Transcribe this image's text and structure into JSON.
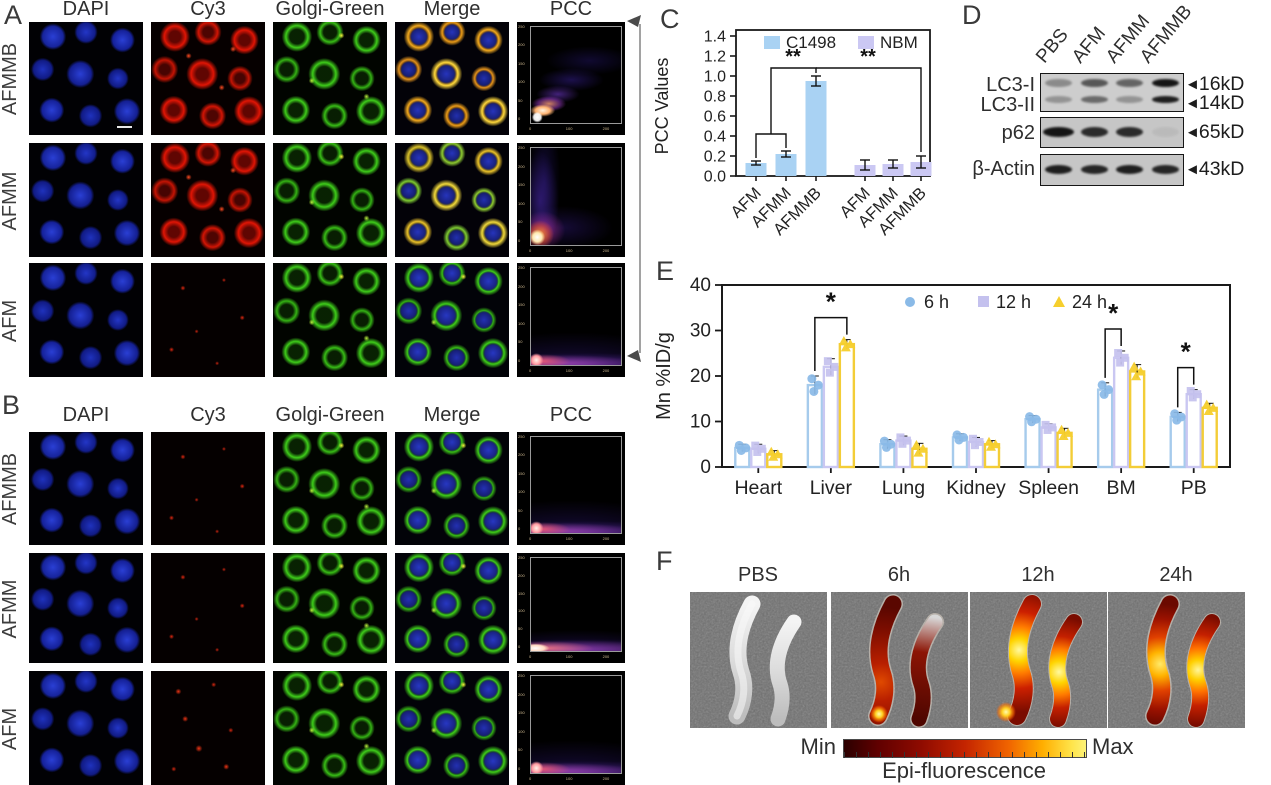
{
  "panels": {
    "A": {
      "label": "A",
      "columns": [
        "DAPI",
        "Cy3",
        "Golgi-Green",
        "Merge",
        "PCC"
      ],
      "rows": [
        "AFMMB",
        "AFMM",
        "AFM"
      ]
    },
    "B": {
      "label": "B",
      "columns": [
        "DAPI",
        "Cy3",
        "Golgi-Green",
        "Merge",
        "PCC"
      ],
      "rows": [
        "AFMMB",
        "AFMM",
        "AFM"
      ]
    },
    "C": {
      "label": "C"
    },
    "D": {
      "label": "D",
      "lanes": [
        "PBS",
        "AFM",
        "AFMM",
        "AFMMB"
      ],
      "marker_arrow": "◄",
      "bands": [
        {
          "label": "LC3-I",
          "marker": "16kD",
          "intensities": [
            0.35,
            0.62,
            0.55,
            0.97
          ]
        },
        {
          "label": "LC3-II",
          "marker": "14kD",
          "intensities": [
            0.3,
            0.52,
            0.3,
            0.92
          ]
        },
        {
          "label": "p62",
          "marker": "65kD",
          "intensities": [
            0.97,
            0.85,
            0.85,
            0.06
          ]
        },
        {
          "label": "β-Actin",
          "marker": "43kD",
          "intensities": [
            0.92,
            0.88,
            0.92,
            0.88
          ]
        }
      ]
    },
    "E": {
      "label": "E"
    },
    "F": {
      "label": "F",
      "conditions": [
        "PBS",
        "6h",
        "12h",
        "24h"
      ],
      "colorbar": {
        "min_label": "Min",
        "max_label": "Max",
        "caption": "Epi-fluorescence"
      }
    }
  },
  "pcc_axis": {
    "y_ticks": [
      "250",
      "200",
      "150",
      "100",
      "50",
      "0"
    ],
    "x_ticks": [
      "0",
      "100",
      "200"
    ]
  },
  "chart_data": [
    {
      "panel": "C",
      "type": "bar",
      "ylabel": "PCC Values",
      "ylim": [
        0,
        1.4
      ],
      "yticks": [
        "0.0",
        "0.2",
        "0.4",
        "0.6",
        "0.8",
        "1.0",
        "1.2",
        "1.4"
      ],
      "categories": [
        "AFM",
        "AFMM",
        "AFMMB"
      ],
      "series": [
        {
          "name": "C1498",
          "color": "#a9d2f3",
          "values": [
            0.13,
            0.22,
            0.95
          ],
          "errors": [
            0.02,
            0.03,
            0.05
          ]
        },
        {
          "name": "NBM",
          "color": "#cbc8f3",
          "values": [
            0.11,
            0.12,
            0.14
          ],
          "errors": [
            0.05,
            0.04,
            0.06
          ]
        }
      ],
      "legend": [
        "C1498",
        "NBM"
      ],
      "legend_position": "top",
      "grid": false,
      "significance": [
        {
          "label": "**",
          "note": "C1498 AFM+AFMM vs C1498 AFMMB"
        },
        {
          "label": "**",
          "note": "C1498 AFMMB vs NBM AFMMB"
        }
      ]
    },
    {
      "panel": "E",
      "type": "bar",
      "ylabel": "Mn %ID/g",
      "ylim": [
        0,
        40
      ],
      "yticks": [
        "0",
        "10",
        "20",
        "30",
        "40"
      ],
      "categories": [
        "Heart",
        "Liver",
        "Lung",
        "Kidney",
        "Spleen",
        "BM",
        "PB"
      ],
      "series": [
        {
          "name": "6 h",
          "marker": "circle",
          "color": "#a6cbec",
          "point_color": "#8abae7",
          "values": [
            4.2,
            18,
            5,
            6.5,
            10.5,
            17,
            11
          ],
          "errors": [
            0.8,
            2,
            1,
            0.8,
            0.8,
            1.5,
            1
          ]
        },
        {
          "name": "12 h",
          "marker": "square",
          "color": "#cac7f2",
          "point_color": "#c4c1ee",
          "values": [
            4.0,
            22,
            5.8,
            5.5,
            8.7,
            24,
            16
          ],
          "errors": [
            1,
            1.8,
            1,
            1,
            0.8,
            1.5,
            1
          ]
        },
        {
          "name": "24 h",
          "marker": "triangle",
          "color": "#f3cd37",
          "point_color": "#f6cf2d",
          "values": [
            2.8,
            27,
            4,
            5,
            7.5,
            21,
            13
          ],
          "errors": [
            0.8,
            1,
            1.2,
            0.8,
            1,
            1.5,
            1
          ]
        }
      ],
      "legend": [
        "6 h",
        "12 h",
        "24 h"
      ],
      "legend_position": "top",
      "grid": false,
      "significance": [
        {
          "label": "*",
          "category": "Liver",
          "between": [
            0,
            2
          ]
        },
        {
          "label": "*",
          "category": "BM",
          "between": [
            0,
            1
          ]
        },
        {
          "label": "*",
          "category": "PB",
          "between": [
            0,
            1
          ]
        }
      ]
    }
  ]
}
